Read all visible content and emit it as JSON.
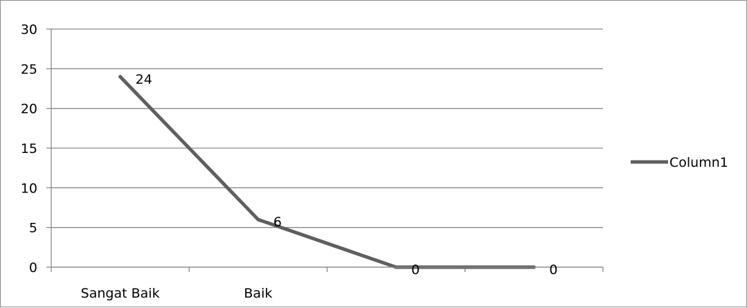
{
  "chart_data": {
    "type": "line",
    "categories": [
      "Sangat Baik",
      "Baik",
      "",
      ""
    ],
    "series": [
      {
        "name": "Column1",
        "values": [
          24,
          6,
          0,
          0
        ],
        "color": "#5f5f5f"
      }
    ],
    "data_labels": [
      "24",
      "6",
      "0",
      "0"
    ],
    "y_ticks": [
      "0",
      "5",
      "10",
      "15",
      "20",
      "25",
      "30"
    ],
    "ylim": [
      0,
      30
    ],
    "grid": true,
    "legend": "right"
  }
}
